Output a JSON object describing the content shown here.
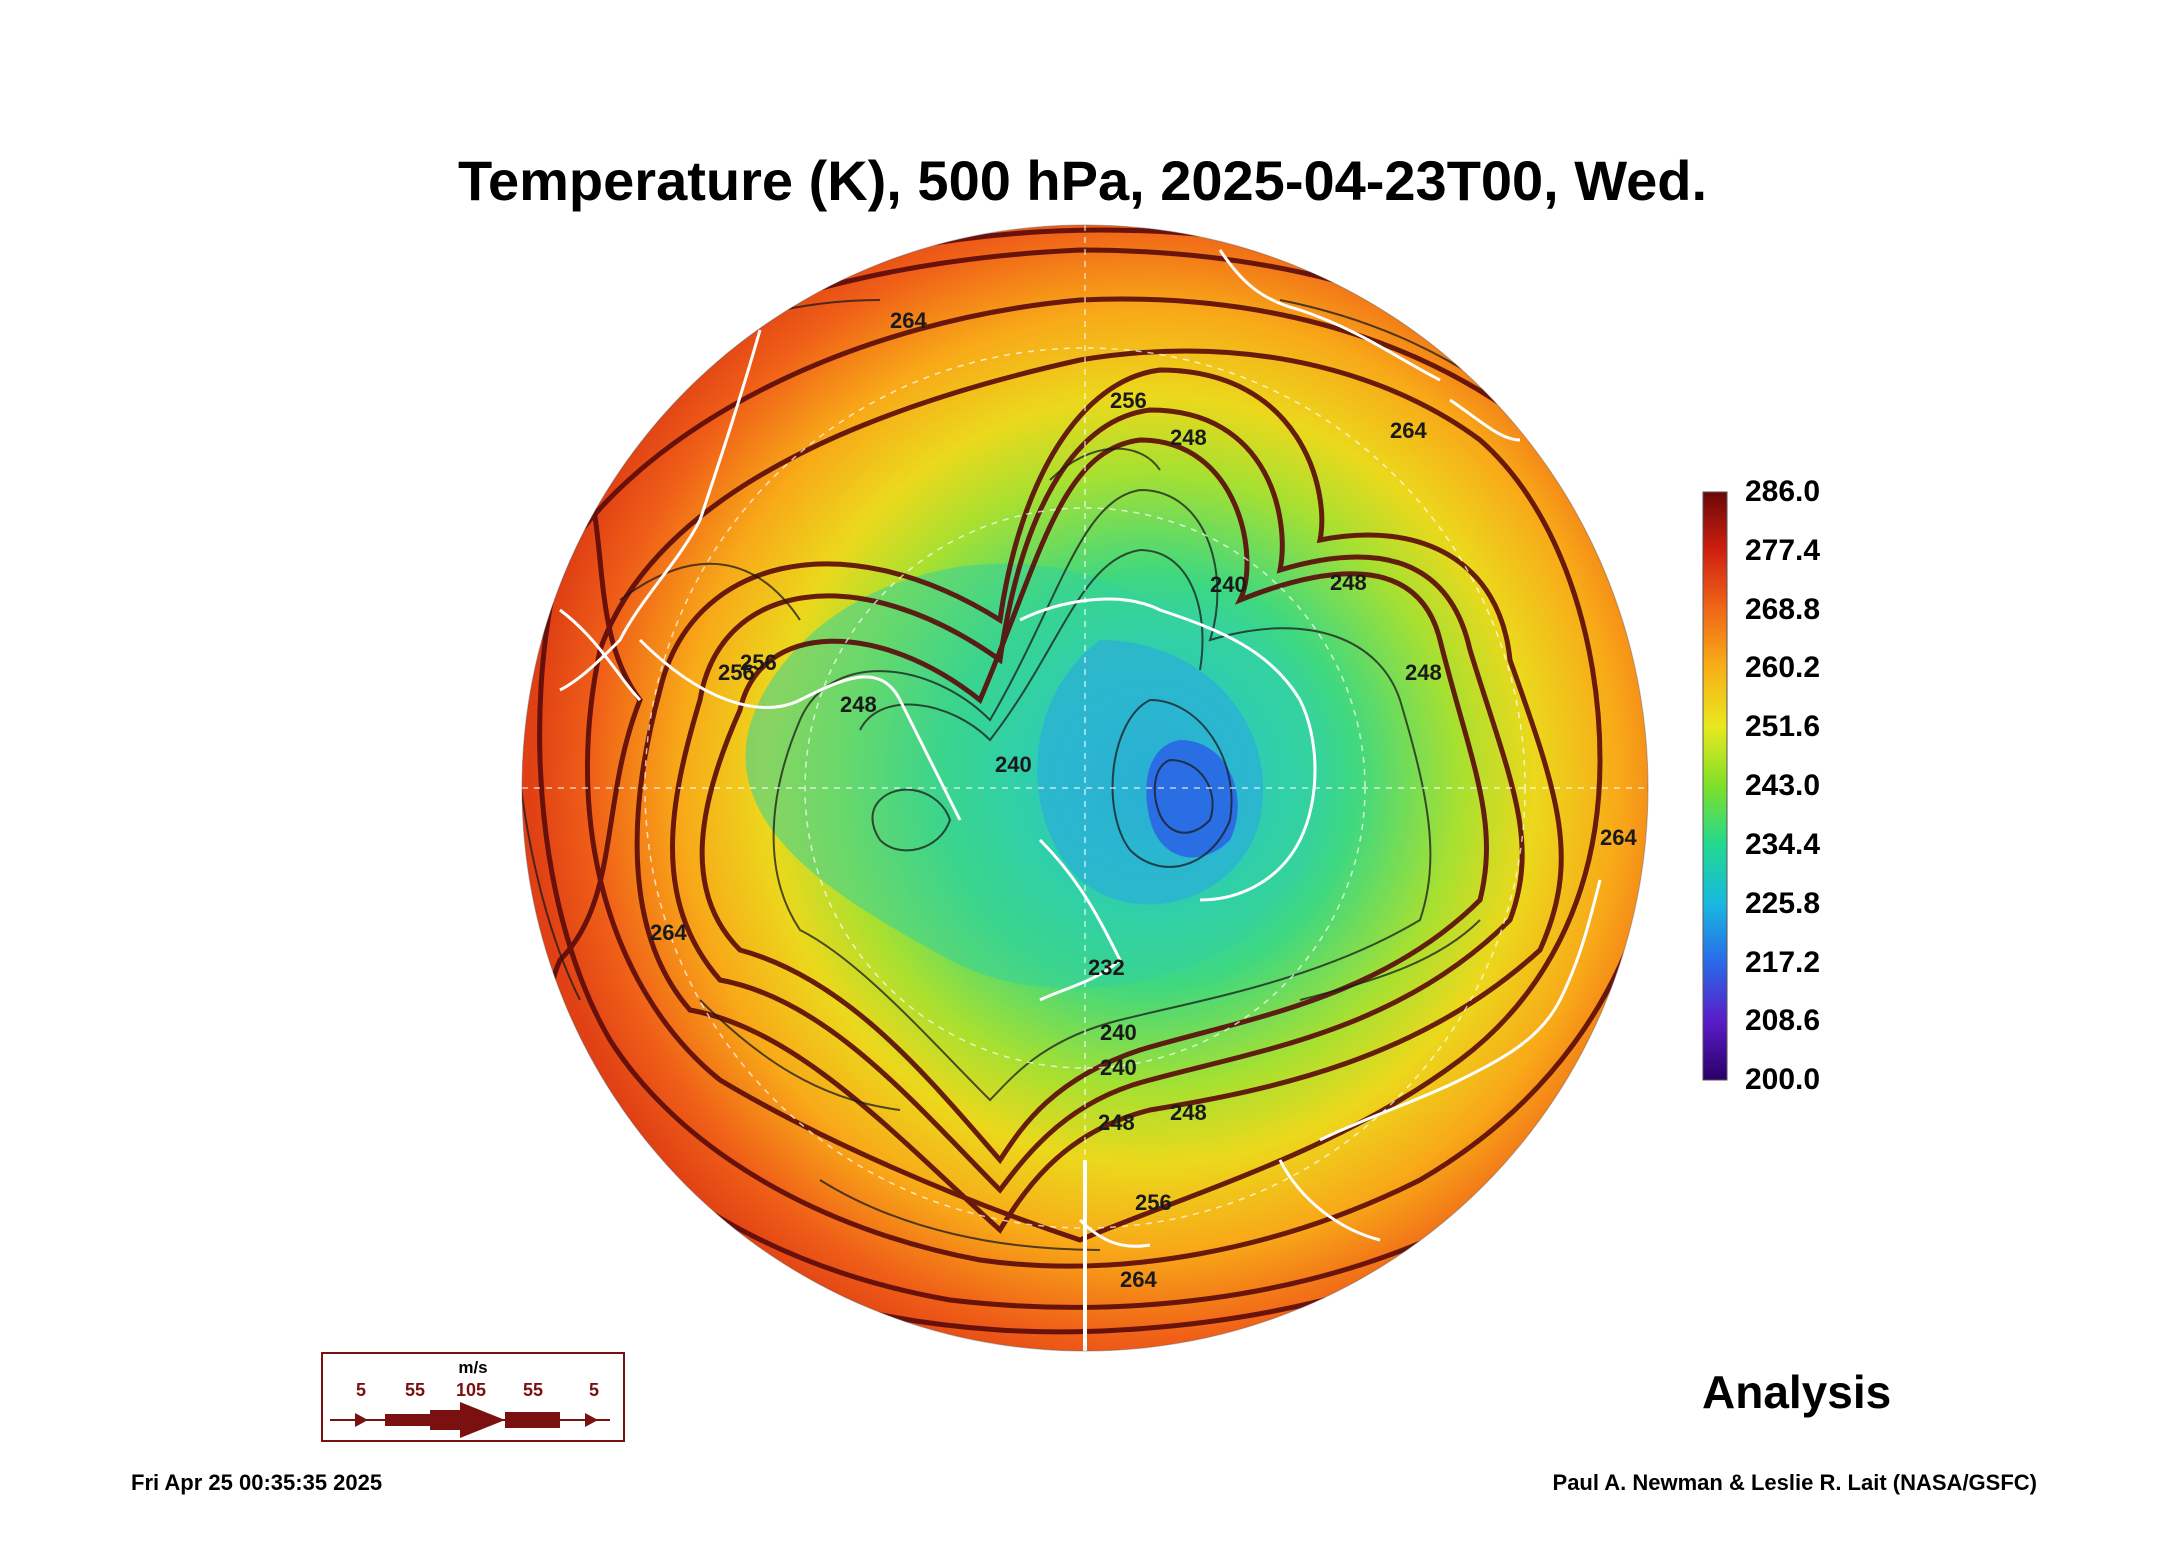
{
  "title": "Temperature (K), 500 hPa, 2025-04-23T00, Wed.",
  "colorbar": {
    "labels": [
      "286.0",
      "277.4",
      "268.8",
      "260.2",
      "251.6",
      "243.0",
      "234.4",
      "225.8",
      "217.2",
      "208.6",
      "200.0"
    ],
    "range": [
      200.0,
      286.0
    ],
    "colors": [
      "#2a0066",
      "#5a1cc8",
      "#2a6ae8",
      "#18b8e0",
      "#22d890",
      "#7ee028",
      "#e8e820",
      "#f8b018",
      "#f06818",
      "#d02010",
      "#6a0808"
    ]
  },
  "contour_labels": [
    "264",
    "256",
    "248",
    "264",
    "248",
    "240",
    "248",
    "256",
    "248",
    "240",
    "232",
    "240",
    "248",
    "256",
    "264",
    "264",
    "256",
    "264",
    "248",
    "240"
  ],
  "wind_legend": {
    "unit": "m/s",
    "values": [
      "5",
      "55",
      "105",
      "55",
      "5"
    ]
  },
  "stage": "Analysis",
  "timestamp": "Fri Apr 25 00:35:35 2025",
  "credit": "Paul A. Newman & Leslie R. Lait (NASA/GSFC)",
  "colors": {
    "coastline": "#ffffff",
    "streamline": "#5a0a0a",
    "contour": "#1a1a1a"
  }
}
